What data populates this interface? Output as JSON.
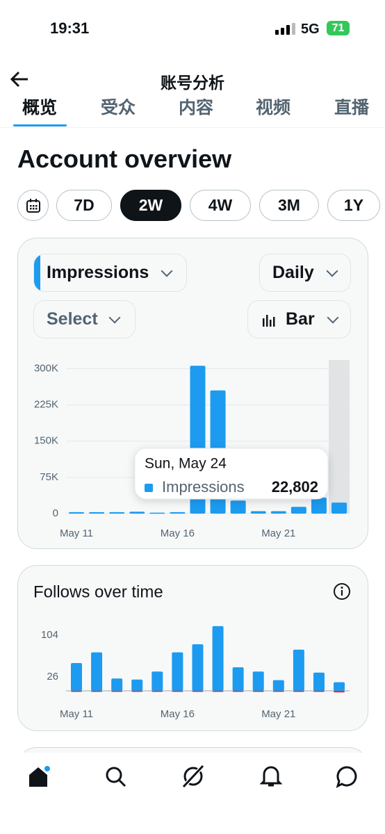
{
  "status_bar": {
    "time": "19:31",
    "network": "5G",
    "battery": "71"
  },
  "header": {
    "title": "账号分析"
  },
  "tabs": {
    "items": [
      "概览",
      "受众",
      "内容",
      "视频",
      "直播"
    ],
    "selected": 0
  },
  "heading": "Account overview",
  "ranges": {
    "options": [
      "7D",
      "2W",
      "4W",
      "3M",
      "1Y"
    ],
    "selected": 1
  },
  "controls": {
    "metric": "Impressions",
    "interval": "Daily",
    "compare": "Select",
    "chart_style": "Bar"
  },
  "chart_data": [
    {
      "type": "bar",
      "categories": [
        "May 11",
        null,
        null,
        null,
        null,
        "May 16",
        null,
        null,
        null,
        null,
        "May 21",
        null,
        null,
        null
      ],
      "series": [
        {
          "name": "Impressions",
          "color": "#1d9bf0",
          "values": [
            3000,
            3000,
            3000,
            4000,
            2000,
            3000,
            306000,
            255000,
            27000,
            5000,
            5000,
            14000,
            33000,
            22802
          ],
          "value_labels": [
            null,
            null,
            null,
            null,
            null,
            null,
            null,
            null,
            null,
            null,
            null,
            null,
            null,
            "22,802"
          ]
        }
      ],
      "ylim": [
        0,
        315000
      ],
      "yticks": [
        0,
        {
          "value": 75000,
          "label": "75K"
        },
        {
          "value": 150000,
          "label": "150K"
        },
        {
          "value": 225000,
          "label": "225K"
        },
        {
          "value": 300000,
          "label": "300K"
        }
      ],
      "grid": true,
      "highlight": 13,
      "tooltip_title": "Sun, May 24"
    },
    {
      "type": "bar",
      "title": "Follows over time",
      "stacked": true,
      "categories": [
        "May 11",
        null,
        null,
        null,
        null,
        "May 16",
        null,
        null,
        null,
        null,
        "May 21",
        null,
        null,
        null
      ],
      "series": [
        {
          "color": "#1d9bf0",
          "values": [
            52,
            72,
            23,
            21,
            36,
            72,
            87,
            121,
            44,
            36,
            20,
            77,
            34,
            16
          ]
        },
        {
          "color": "#f4212e",
          "values": [
            -2,
            -2,
            -2,
            -2,
            -2,
            -2,
            -1,
            -2,
            -2,
            -2,
            -2,
            -2,
            -2,
            -3
          ]
        }
      ],
      "ylim": [
        -5,
        125
      ],
      "yticks": [
        26,
        104
      ],
      "grid": false
    }
  ]
}
